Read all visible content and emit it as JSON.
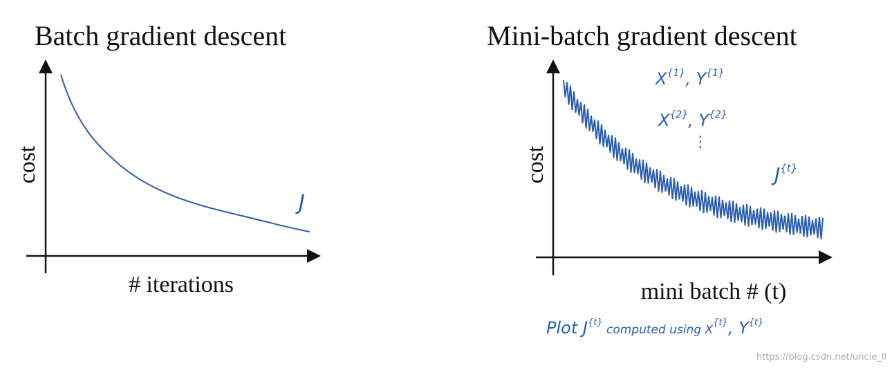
{
  "left": {
    "title": "Batch gradient descent",
    "y_label": "cost",
    "x_label": "# iterations",
    "curve_label": "J"
  },
  "right": {
    "title": "Mini-batch gradient descent",
    "y_label": "cost",
    "x_label": "mini batch # (t)",
    "notes": [
      {
        "a": "X",
        "a_sup": "{1}",
        "b": ", Y",
        "b_sup": "{1}"
      },
      {
        "a": "X",
        "a_sup": "{2}",
        "b": ", Y",
        "b_sup": "{2}"
      }
    ],
    "dots": "⋮",
    "curve_label": {
      "a": "J",
      "a_sup": "{t}"
    }
  },
  "caption": {
    "t1": "Plot J",
    "s1": "{t}",
    "t2": " computed using X",
    "s2": "{t}",
    "t3": ", Y",
    "s3": "{t}"
  },
  "watermark": "https://blog.csdn.net/uncle_ll"
}
